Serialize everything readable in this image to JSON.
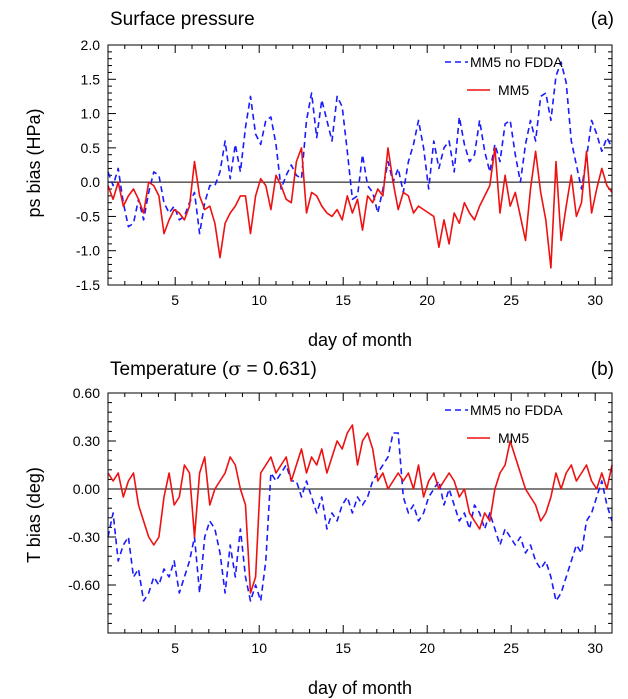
{
  "chart_data": [
    {
      "type": "line",
      "title": "Surface pressure",
      "panel_label": "(a)",
      "xlabel": "day of month",
      "ylabel": "ps bias (HPa)",
      "xlim": [
        1,
        31
      ],
      "ylim": [
        -1.5,
        2.0
      ],
      "x_ticks": [
        5,
        10,
        15,
        20,
        25,
        30
      ],
      "x_tick_labels": [
        "5",
        "10",
        "15",
        "20",
        "25",
        "30"
      ],
      "y_ticks": [
        -1.5,
        -1.0,
        -0.5,
        0.0,
        0.5,
        1.0,
        1.5,
        2.0
      ],
      "y_tick_labels": [
        "-1.5",
        "-1.0",
        "-0.5",
        "0.0",
        "0.5",
        "1.0",
        "1.5",
        "2.0"
      ],
      "zero_line": true,
      "legend_position": "top-right",
      "series": [
        {
          "name": "MM5 no FDDA",
          "color": "#1a1aff",
          "dash": "dashed",
          "values": [
            0.15,
            -0.05,
            0.2,
            -0.3,
            -0.65,
            -0.6,
            -0.25,
            -0.55,
            -0.15,
            0.15,
            0.1,
            -0.3,
            -0.45,
            -0.35,
            -0.55,
            -0.5,
            -0.3,
            -0.15,
            -0.75,
            -0.3,
            -0.05,
            -0.05,
            0.15,
            0.6,
            0.05,
            0.55,
            0.15,
            0.8,
            1.25,
            0.7,
            0.55,
            0.9,
            0.95,
            0.55,
            -0.1,
            0.1,
            0.25,
            0.1,
            0.05,
            0.9,
            1.3,
            0.65,
            1.2,
            0.9,
            0.6,
            1.25,
            1.1,
            0.45,
            -0.25,
            -0.2,
            0.4,
            -0.05,
            -0.15,
            -0.45,
            -0.1,
            0.3,
            0.0,
            0.2,
            -0.15,
            0.3,
            0.55,
            0.9,
            0.5,
            -0.1,
            0.6,
            0.2,
            0.5,
            0.6,
            0.15,
            0.95,
            0.55,
            0.3,
            0.4,
            0.9,
            0.45,
            0.15,
            0.55,
            0.3,
            0.85,
            0.9,
            0.4,
            0.0,
            0.55,
            0.9,
            0.6,
            1.25,
            1.3,
            0.9,
            1.55,
            1.75,
            1.45,
            0.6,
            0.25,
            -0.1,
            0.35,
            0.9,
            0.7,
            0.45,
            0.65,
            0.5
          ]
        },
        {
          "name": "MM5",
          "color": "#ee1111",
          "dash": "solid",
          "values": [
            -0.05,
            -0.25,
            0.0,
            -0.35,
            -0.2,
            -0.1,
            -0.25,
            -0.45,
            0.0,
            -0.05,
            -0.2,
            -0.75,
            -0.55,
            -0.4,
            -0.45,
            -0.55,
            -0.35,
            0.3,
            -0.2,
            -0.4,
            -0.35,
            -0.6,
            -1.1,
            -0.6,
            -0.45,
            -0.35,
            -0.2,
            -0.2,
            -0.75,
            -0.2,
            0.05,
            -0.05,
            -0.4,
            0.1,
            -0.05,
            -0.25,
            -0.3,
            0.3,
            0.5,
            -0.45,
            -0.15,
            -0.2,
            -0.35,
            -0.45,
            -0.5,
            -0.4,
            -0.55,
            -0.2,
            -0.45,
            -0.25,
            -0.7,
            -0.2,
            -0.3,
            -0.1,
            -0.2,
            0.5,
            0.0,
            -0.4,
            -0.15,
            -0.2,
            -0.45,
            -0.35,
            -0.4,
            -0.45,
            -0.5,
            -0.95,
            -0.55,
            -0.9,
            -0.45,
            -0.6,
            -0.3,
            -0.45,
            -0.55,
            -0.35,
            -0.2,
            -0.05,
            0.5,
            -0.45,
            0.1,
            -0.35,
            -0.15,
            -0.5,
            -0.85,
            -0.1,
            0.45,
            -0.15,
            -0.55,
            -1.25,
            0.3,
            -0.85,
            -0.35,
            0.1,
            -0.5,
            -0.3,
            0.45,
            -0.45,
            -0.1,
            0.2,
            -0.05,
            -0.15
          ]
        }
      ]
    },
    {
      "type": "line",
      "title_prefix": "Temperature (",
      "title_symbol": "σ",
      "title_suffix": " = 0.631)",
      "panel_label": "(b)",
      "xlabel": "day of month",
      "ylabel": "T bias (deg)",
      "xlim": [
        1,
        31
      ],
      "ylim": [
        -0.9,
        0.6
      ],
      "x_ticks": [
        5,
        10,
        15,
        20,
        25,
        30
      ],
      "x_tick_labels": [
        "5",
        "10",
        "15",
        "20",
        "25",
        "30"
      ],
      "y_ticks": [
        -0.6,
        -0.3,
        0.0,
        0.3,
        0.6
      ],
      "y_tick_labels": [
        "-0.60",
        "-0.30",
        "0.00",
        "0.30",
        "0.60"
      ],
      "zero_line": true,
      "legend_position": "top-right",
      "series": [
        {
          "name": "MM5 no FDDA",
          "color": "#1a1aff",
          "dash": "dashed",
          "values": [
            -0.3,
            -0.15,
            -0.45,
            -0.35,
            -0.3,
            -0.55,
            -0.5,
            -0.7,
            -0.65,
            -0.55,
            -0.6,
            -0.5,
            -0.55,
            -0.45,
            -0.65,
            -0.55,
            -0.45,
            -0.3,
            -0.65,
            -0.3,
            -0.2,
            -0.25,
            -0.4,
            -0.65,
            -0.35,
            -0.55,
            -0.25,
            -0.55,
            -0.7,
            -0.6,
            -0.7,
            -0.45,
            0.1,
            0.05,
            0.1,
            0.15,
            0.05,
            0.05,
            -0.05,
            0.05,
            -0.05,
            -0.15,
            -0.05,
            -0.25,
            -0.15,
            -0.2,
            -0.1,
            -0.05,
            -0.15,
            -0.05,
            -0.1,
            -0.05,
            0.05,
            0.1,
            0.15,
            0.2,
            0.35,
            0.35,
            -0.05,
            -0.15,
            -0.1,
            -0.2,
            -0.15,
            -0.05,
            0.0,
            0.05,
            -0.1,
            0.0,
            -0.1,
            -0.2,
            -0.15,
            -0.25,
            -0.1,
            -0.15,
            -0.25,
            -0.15,
            -0.25,
            -0.35,
            -0.25,
            -0.3,
            -0.35,
            -0.3,
            -0.4,
            -0.35,
            -0.45,
            -0.5,
            -0.45,
            -0.55,
            -0.7,
            -0.65,
            -0.55,
            -0.45,
            -0.35,
            -0.4,
            -0.2,
            -0.15,
            -0.05,
            0.05,
            -0.1,
            -0.2
          ]
        },
        {
          "name": "MM5",
          "color": "#ee1111",
          "dash": "solid",
          "values": [
            0.1,
            0.05,
            0.1,
            -0.05,
            0.05,
            0.1,
            -0.1,
            -0.2,
            -0.3,
            -0.35,
            -0.3,
            -0.05,
            0.1,
            -0.1,
            -0.05,
            0.15,
            0.1,
            -0.3,
            0.1,
            0.2,
            -0.1,
            0.0,
            0.05,
            0.1,
            0.2,
            0.15,
            0.0,
            -0.1,
            -0.65,
            -0.55,
            0.1,
            0.15,
            0.2,
            0.1,
            0.15,
            0.2,
            0.05,
            0.15,
            0.25,
            0.1,
            0.2,
            0.15,
            0.25,
            0.1,
            0.2,
            0.3,
            0.25,
            0.35,
            0.4,
            0.15,
            0.3,
            0.35,
            0.25,
            0.05,
            0.1,
            0.0,
            0.05,
            0.1,
            0.05,
            0.1,
            0.0,
            0.15,
            -0.05,
            0.05,
            0.1,
            0.0,
            0.05,
            0.1,
            0.05,
            -0.05,
            0.0,
            -0.15,
            -0.2,
            -0.25,
            -0.15,
            -0.2,
            0.0,
            0.1,
            0.15,
            0.3,
            0.2,
            0.1,
            0.0,
            -0.05,
            -0.1,
            -0.2,
            -0.15,
            -0.05,
            0.1,
            0.0,
            0.1,
            0.15,
            0.05,
            0.1,
            0.15,
            0.05,
            0.0,
            0.1,
            0.0,
            0.15
          ]
        }
      ]
    }
  ]
}
